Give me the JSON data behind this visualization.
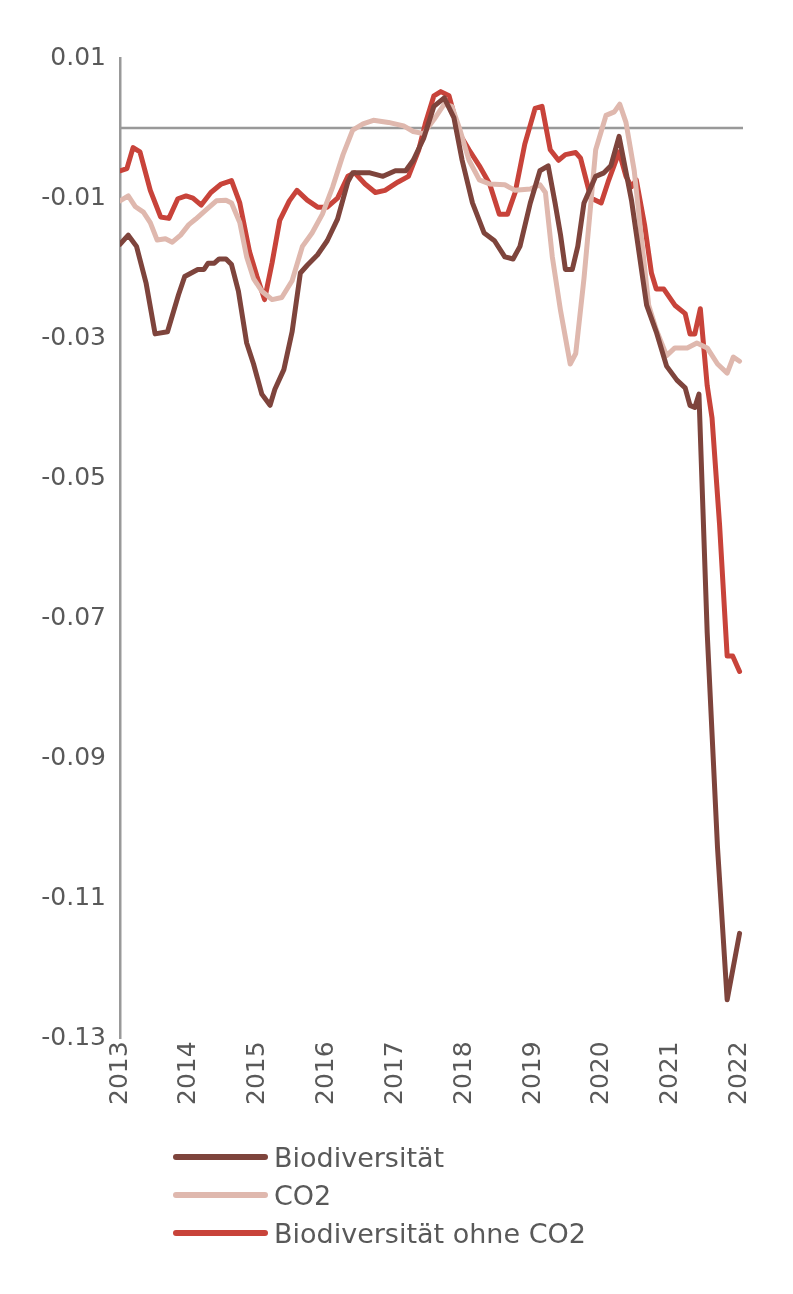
{
  "chart_data": {
    "type": "line",
    "xlim": [
      2013,
      2022.05
    ],
    "xticks": [
      2013,
      2014,
      2015,
      2016,
      2017,
      2018,
      2019,
      2020,
      2021,
      2022
    ],
    "ylim": [
      -0.13,
      0.01
    ],
    "yticks": [
      0.01,
      -0.01,
      -0.03,
      -0.05,
      -0.07,
      -0.09,
      -0.11,
      -0.13
    ],
    "grid": false,
    "legend": "bottom",
    "marker": "none",
    "line_style": "solid",
    "ref_lines": [
      {
        "axis": "y",
        "value": 0,
        "color": "#999999"
      }
    ],
    "series": [
      {
        "name": "Biodiversität",
        "color": "#7e443c",
        "x": [
          2013.0,
          2013.12,
          2013.24,
          2013.38,
          2013.51,
          2013.69,
          2013.85,
          2013.94,
          2014.13,
          2014.22,
          2014.28,
          2014.37,
          2014.44,
          2014.54,
          2014.62,
          2014.72,
          2014.84,
          2014.94,
          2015.06,
          2015.18,
          2015.25,
          2015.38,
          2015.5,
          2015.62,
          2015.72,
          2015.87,
          2016.01,
          2016.16,
          2016.31,
          2016.38,
          2016.63,
          2016.82,
          2017.0,
          2017.15,
          2017.26,
          2017.41,
          2017.56,
          2017.71,
          2017.85,
          2017.97,
          2018.12,
          2018.29,
          2018.44,
          2018.59,
          2018.71,
          2018.81,
          2018.96,
          2019.1,
          2019.22,
          2019.32,
          2019.4,
          2019.47,
          2019.57,
          2019.65,
          2019.74,
          2019.91,
          2020.03,
          2020.13,
          2020.25,
          2020.43,
          2020.65,
          2020.79,
          2020.94,
          2021.09,
          2021.21,
          2021.28,
          2021.35,
          2021.41,
          2021.53,
          2021.68,
          2021.82,
          2022.0
        ],
        "values": [
          -0.0166,
          -0.0153,
          -0.0169,
          -0.0222,
          -0.0294,
          -0.0291,
          -0.0238,
          -0.0212,
          -0.0202,
          -0.0202,
          -0.0193,
          -0.0193,
          -0.0187,
          -0.0187,
          -0.0195,
          -0.0233,
          -0.0307,
          -0.0337,
          -0.038,
          -0.0396,
          -0.0373,
          -0.0345,
          -0.0291,
          -0.0207,
          -0.0196,
          -0.0181,
          -0.0161,
          -0.013,
          -0.0077,
          -0.0064,
          -0.0064,
          -0.0069,
          -0.0061,
          -0.0061,
          -0.0046,
          -0.0015,
          0.0031,
          0.0043,
          0.0015,
          -0.0046,
          -0.0107,
          -0.015,
          -0.0161,
          -0.0184,
          -0.0187,
          -0.0169,
          -0.0107,
          -0.0061,
          -0.0054,
          -0.0107,
          -0.0153,
          -0.0202,
          -0.0202,
          -0.0169,
          -0.0107,
          -0.0069,
          -0.0064,
          -0.0054,
          -0.0012,
          -0.0103,
          -0.0253,
          -0.0291,
          -0.034,
          -0.036,
          -0.0371,
          -0.0396,
          -0.0399,
          -0.038,
          -0.0721,
          -0.1028,
          -0.1245,
          -0.115
        ]
      },
      {
        "name": "CO2",
        "color": "#dfb8ae",
        "x": [
          2013.0,
          2013.12,
          2013.22,
          2013.34,
          2013.44,
          2013.54,
          2013.66,
          2013.76,
          2013.88,
          2014.0,
          2014.1,
          2014.25,
          2014.4,
          2014.54,
          2014.62,
          2014.74,
          2014.84,
          2014.94,
          2015.06,
          2015.21,
          2015.35,
          2015.5,
          2015.65,
          2015.79,
          2015.94,
          2016.09,
          2016.24,
          2016.38,
          2016.53,
          2016.68,
          2016.9,
          2017.12,
          2017.26,
          2017.41,
          2017.56,
          2017.71,
          2017.82,
          2017.93,
          2018.07,
          2018.22,
          2018.37,
          2018.59,
          2018.74,
          2018.96,
          2019.1,
          2019.18,
          2019.28,
          2019.4,
          2019.54,
          2019.62,
          2019.74,
          2019.84,
          2019.91,
          2020.06,
          2020.18,
          2020.26,
          2020.35,
          2020.47,
          2020.57,
          2020.68,
          2020.79,
          2020.94,
          2021.06,
          2021.24,
          2021.38,
          2021.53,
          2021.68,
          2021.82,
          2021.91,
          2022.0
        ],
        "values": [
          -0.0104,
          -0.0097,
          -0.0112,
          -0.012,
          -0.0135,
          -0.016,
          -0.0158,
          -0.0163,
          -0.0153,
          -0.0138,
          -0.013,
          -0.0117,
          -0.0104,
          -0.0103,
          -0.0107,
          -0.0135,
          -0.0184,
          -0.0215,
          -0.0233,
          -0.0245,
          -0.0242,
          -0.0218,
          -0.0169,
          -0.015,
          -0.0123,
          -0.0084,
          -0.0038,
          -0.0003,
          0.0006,
          0.0011,
          0.0008,
          0.0003,
          -0.0005,
          -0.0008,
          0.0012,
          0.0034,
          0.0031,
          0.0,
          -0.0046,
          -0.0074,
          -0.008,
          -0.0081,
          -0.0089,
          -0.0087,
          -0.0081,
          -0.0092,
          -0.0184,
          -0.0261,
          -0.0337,
          -0.0322,
          -0.0215,
          -0.0107,
          -0.0031,
          0.0018,
          0.0023,
          0.0034,
          0.0008,
          -0.0061,
          -0.0153,
          -0.0253,
          -0.0288,
          -0.0325,
          -0.0314,
          -0.0314,
          -0.0307,
          -0.0314,
          -0.0337,
          -0.035,
          -0.0327,
          -0.0333
        ]
      },
      {
        "name": "Biodiversität ohne CO2",
        "color": "#c8433a",
        "x": [
          2013.0,
          2013.1,
          2013.19,
          2013.29,
          2013.44,
          2013.59,
          2013.71,
          2013.84,
          2013.96,
          2014.06,
          2014.18,
          2014.32,
          2014.47,
          2014.62,
          2014.74,
          2014.88,
          2014.99,
          2015.1,
          2015.21,
          2015.32,
          2015.46,
          2015.57,
          2015.72,
          2015.87,
          2016.01,
          2016.16,
          2016.31,
          2016.41,
          2016.56,
          2016.71,
          2016.85,
          2017.04,
          2017.19,
          2017.34,
          2017.44,
          2017.56,
          2017.66,
          2017.78,
          2017.93,
          2018.07,
          2018.22,
          2018.37,
          2018.51,
          2018.63,
          2018.74,
          2018.88,
          2019.03,
          2019.13,
          2019.25,
          2019.37,
          2019.47,
          2019.62,
          2019.69,
          2019.84,
          2019.99,
          2020.09,
          2020.25,
          2020.35,
          2020.43,
          2020.5,
          2020.62,
          2020.72,
          2020.79,
          2020.9,
          2021.06,
          2021.21,
          2021.28,
          2021.35,
          2021.43,
          2021.53,
          2021.6,
          2021.71,
          2021.82,
          2021.9,
          2022.0
        ],
        "values": [
          -0.0061,
          -0.0058,
          -0.0028,
          -0.0034,
          -0.0089,
          -0.0127,
          -0.0129,
          -0.0101,
          -0.0097,
          -0.01,
          -0.011,
          -0.0092,
          -0.008,
          -0.0075,
          -0.0107,
          -0.0176,
          -0.0212,
          -0.0245,
          -0.0192,
          -0.0132,
          -0.0104,
          -0.0089,
          -0.0103,
          -0.0113,
          -0.0113,
          -0.01,
          -0.0069,
          -0.0064,
          -0.008,
          -0.0092,
          -0.0089,
          -0.0077,
          -0.0069,
          -0.0031,
          0.0008,
          0.0046,
          0.0052,
          0.0046,
          -0.0008,
          -0.0031,
          -0.0054,
          -0.008,
          -0.0123,
          -0.0123,
          -0.0092,
          -0.0023,
          0.0028,
          0.0031,
          -0.0031,
          -0.0046,
          -0.0038,
          -0.0035,
          -0.0043,
          -0.01,
          -0.0107,
          -0.0077,
          -0.0034,
          -0.0069,
          -0.0084,
          -0.0074,
          -0.0138,
          -0.0207,
          -0.023,
          -0.023,
          -0.0253,
          -0.0265,
          -0.0294,
          -0.0294,
          -0.0258,
          -0.0368,
          -0.0414,
          -0.0567,
          -0.0754,
          -0.0754,
          -0.0776
        ]
      }
    ]
  }
}
